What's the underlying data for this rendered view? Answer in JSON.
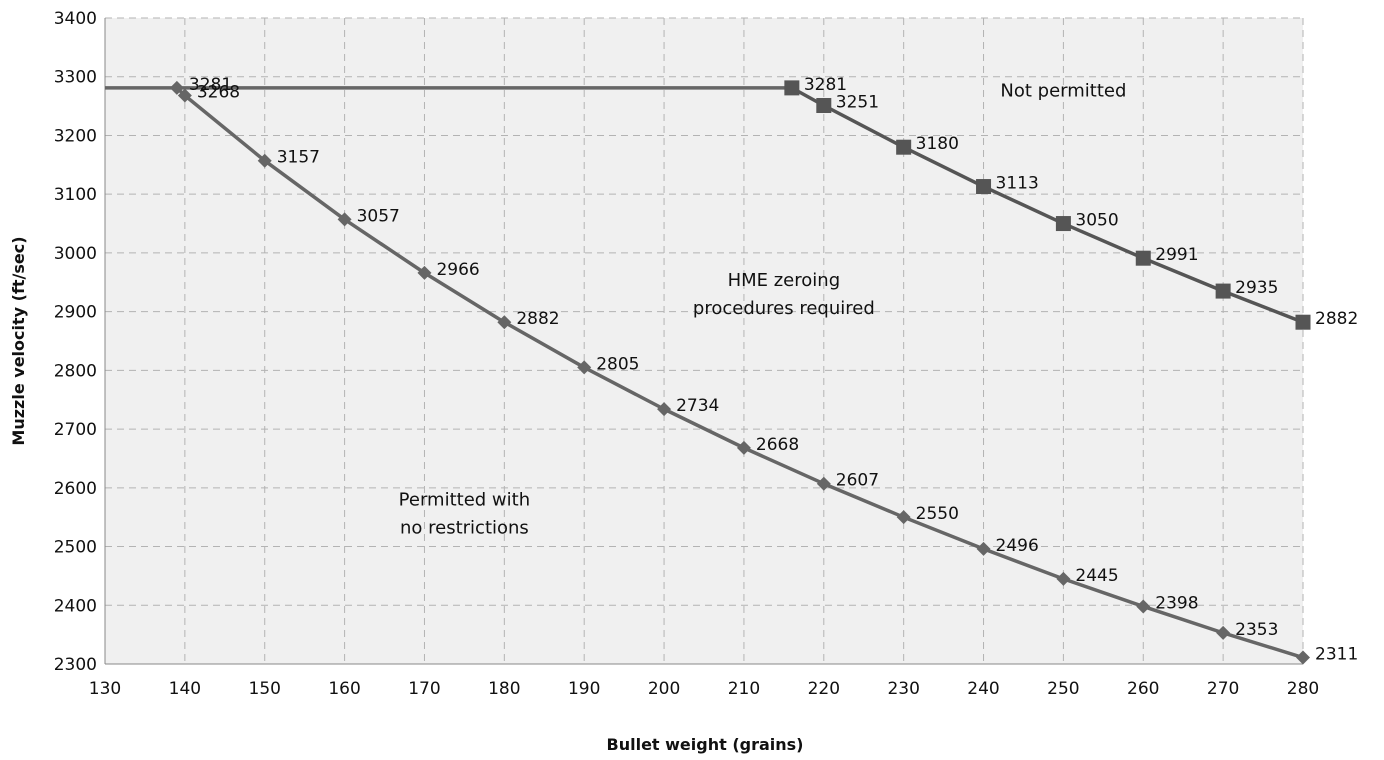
{
  "chart_data": {
    "type": "line",
    "xlabel": "Bullet weight (grains)",
    "ylabel": "Muzzle velocity (ft/sec)",
    "xlim": [
      130,
      280
    ],
    "ylim": [
      2300,
      3400
    ],
    "x_ticks": [
      130,
      140,
      150,
      160,
      170,
      180,
      190,
      200,
      210,
      220,
      230,
      240,
      250,
      260,
      270,
      280
    ],
    "y_ticks": [
      2300,
      2400,
      2500,
      2600,
      2700,
      2800,
      2900,
      3000,
      3100,
      3200,
      3300,
      3400
    ],
    "grid": true,
    "series": [
      {
        "marker": "diamond",
        "color": "#666666",
        "points": [
          {
            "x": 139,
            "y": 3281,
            "label": "3281"
          },
          {
            "x": 140,
            "y": 3268,
            "label": "3268"
          },
          {
            "x": 150,
            "y": 3157,
            "label": "3157"
          },
          {
            "x": 160,
            "y": 3057,
            "label": "3057"
          },
          {
            "x": 170,
            "y": 2966,
            "label": "2966"
          },
          {
            "x": 180,
            "y": 2882,
            "label": "2882"
          },
          {
            "x": 190,
            "y": 2805,
            "label": "2805"
          },
          {
            "x": 200,
            "y": 2734,
            "label": "2734"
          },
          {
            "x": 210,
            "y": 2668,
            "label": "2668"
          },
          {
            "x": 220,
            "y": 2607,
            "label": "2607"
          },
          {
            "x": 230,
            "y": 2550,
            "label": "2550"
          },
          {
            "x": 240,
            "y": 2496,
            "label": "2496"
          },
          {
            "x": 250,
            "y": 2445,
            "label": "2445"
          },
          {
            "x": 260,
            "y": 2398,
            "label": "2398"
          },
          {
            "x": 270,
            "y": 2353,
            "label": "2353"
          },
          {
            "x": 280,
            "y": 2311,
            "label": "2311"
          }
        ]
      },
      {
        "marker": "square",
        "color": "#555555",
        "points": [
          {
            "x": 216,
            "y": 3281,
            "label": "3281"
          },
          {
            "x": 220,
            "y": 3251,
            "label": "3251"
          },
          {
            "x": 230,
            "y": 3180,
            "label": "3180"
          },
          {
            "x": 240,
            "y": 3113,
            "label": "3113"
          },
          {
            "x": 250,
            "y": 3050,
            "label": "3050"
          },
          {
            "x": 260,
            "y": 2991,
            "label": "2991"
          },
          {
            "x": 270,
            "y": 2935,
            "label": "2935"
          },
          {
            "x": 280,
            "y": 2882,
            "label": "2882"
          }
        ]
      },
      {
        "marker": "none",
        "color": "#666666",
        "points": [
          {
            "x": 130,
            "y": 3281
          },
          {
            "x": 216,
            "y": 3281
          }
        ]
      }
    ],
    "annotations": [
      {
        "lines": [
          "Not permitted"
        ],
        "x": 250,
        "y": 3266
      },
      {
        "lines": [
          "HME zeroing",
          "procedures required"
        ],
        "x": 215,
        "y": 2944
      },
      {
        "lines": [
          "Permitted with",
          "no restrictions"
        ],
        "x": 175,
        "y": 2570
      }
    ]
  }
}
